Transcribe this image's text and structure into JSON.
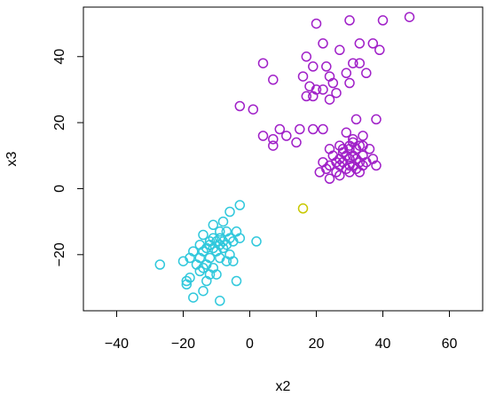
{
  "chart_data": {
    "type": "scatter",
    "title": "",
    "xlabel": "x2",
    "ylabel": "x3",
    "xlim": [
      -50,
      70
    ],
    "ylim": [
      -37,
      55
    ],
    "x_ticks": [
      -40,
      -20,
      0,
      20,
      40,
      60
    ],
    "y_ticks": [
      -20,
      0,
      20,
      40
    ],
    "grid": false,
    "legend": "none",
    "series": [
      {
        "color": "#a020c8",
        "points": [
          [
            20,
            50
          ],
          [
            30,
            51
          ],
          [
            40,
            51
          ],
          [
            48,
            52
          ],
          [
            22,
            44
          ],
          [
            33,
            44
          ],
          [
            37,
            44
          ],
          [
            27,
            42
          ],
          [
            39,
            42
          ],
          [
            4,
            38
          ],
          [
            17,
            40
          ],
          [
            23,
            37
          ],
          [
            31,
            38
          ],
          [
            33,
            38
          ],
          [
            19,
            37
          ],
          [
            29,
            35
          ],
          [
            35,
            35
          ],
          [
            24,
            34
          ],
          [
            7,
            33
          ],
          [
            16,
            34
          ],
          [
            25,
            32
          ],
          [
            30,
            32
          ],
          [
            18,
            31
          ],
          [
            22,
            30
          ],
          [
            26,
            29
          ],
          [
            17,
            28
          ],
          [
            19,
            28
          ],
          [
            24,
            27
          ],
          [
            20,
            30
          ],
          [
            -3,
            25
          ],
          [
            1,
            24
          ],
          [
            9,
            18
          ],
          [
            11,
            16
          ],
          [
            15,
            18
          ],
          [
            19,
            18
          ],
          [
            22,
            18
          ],
          [
            14,
            14
          ],
          [
            4,
            16
          ],
          [
            7,
            15
          ],
          [
            7,
            13
          ],
          [
            32,
            21
          ],
          [
            38,
            21
          ],
          [
            29,
            17
          ],
          [
            34,
            16
          ],
          [
            31,
            15
          ],
          [
            27,
            13
          ],
          [
            33,
            13
          ],
          [
            36,
            12
          ],
          [
            24,
            12
          ],
          [
            28,
            12
          ],
          [
            30,
            12
          ],
          [
            32,
            12
          ],
          [
            25,
            10
          ],
          [
            29,
            10
          ],
          [
            31,
            10
          ],
          [
            34,
            10
          ],
          [
            27,
            9
          ],
          [
            30,
            9
          ],
          [
            32,
            9
          ],
          [
            37,
            9
          ],
          [
            22,
            8
          ],
          [
            26,
            8
          ],
          [
            28,
            8
          ],
          [
            33,
            8
          ],
          [
            35,
            8
          ],
          [
            24,
            7
          ],
          [
            27,
            7
          ],
          [
            30,
            7
          ],
          [
            31,
            7
          ],
          [
            34,
            7
          ],
          [
            38,
            7
          ],
          [
            23,
            6
          ],
          [
            29,
            6
          ],
          [
            32,
            6
          ],
          [
            26,
            5
          ],
          [
            30,
            5
          ],
          [
            21,
            5
          ],
          [
            27,
            4
          ],
          [
            24,
            3
          ],
          [
            33,
            5
          ],
          [
            28,
            11
          ],
          [
            30,
            13
          ],
          [
            31,
            14
          ],
          [
            34,
            13
          ]
        ]
      },
      {
        "color": "#30c8dc",
        "points": [
          [
            -3,
            -5
          ],
          [
            -6,
            -7
          ],
          [
            -8,
            -10
          ],
          [
            -11,
            -11
          ],
          [
            -9,
            -13
          ],
          [
            -7,
            -13
          ],
          [
            -4,
            -13
          ],
          [
            -14,
            -14
          ],
          [
            -11,
            -15
          ],
          [
            -9,
            -15
          ],
          [
            -6,
            -15
          ],
          [
            -3,
            -15
          ],
          [
            -12,
            -16
          ],
          [
            -10,
            -16
          ],
          [
            -8,
            -16
          ],
          [
            -5,
            -16
          ],
          [
            2,
            -16
          ],
          [
            -15,
            -17
          ],
          [
            -12,
            -17
          ],
          [
            -9,
            -17
          ],
          [
            -7,
            -17
          ],
          [
            -13,
            -18
          ],
          [
            -11,
            -18
          ],
          [
            -8,
            -18
          ],
          [
            -17,
            -19
          ],
          [
            -14,
            -19
          ],
          [
            -10,
            -19
          ],
          [
            -6,
            -20
          ],
          [
            -18,
            -21
          ],
          [
            -15,
            -21
          ],
          [
            -12,
            -21
          ],
          [
            -9,
            -21
          ],
          [
            -7,
            -22
          ],
          [
            -5,
            -22
          ],
          [
            -20,
            -22
          ],
          [
            -16,
            -23
          ],
          [
            -13,
            -23
          ],
          [
            -27,
            -23
          ],
          [
            -14,
            -24
          ],
          [
            -11,
            -24
          ],
          [
            -15,
            -25
          ],
          [
            -12,
            -26
          ],
          [
            -10,
            -26
          ],
          [
            -18,
            -27
          ],
          [
            -13,
            -28
          ],
          [
            -4,
            -28
          ],
          [
            -19,
            -28
          ],
          [
            -19,
            -29
          ],
          [
            -14,
            -31
          ],
          [
            -17,
            -33
          ],
          [
            -9,
            -34
          ]
        ]
      },
      {
        "color": "#c8c800",
        "points": [
          [
            16,
            -6
          ]
        ]
      }
    ]
  }
}
